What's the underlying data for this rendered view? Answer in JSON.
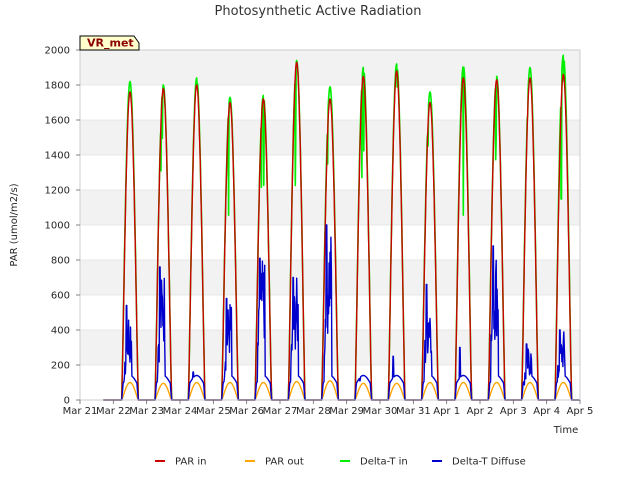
{
  "chart_data": {
    "type": "line",
    "title": "Photosynthetic Active Radiation",
    "xlabel": "Time",
    "ylabel": "PAR (umol/m2/s)",
    "ylim": [
      0,
      2000
    ],
    "xlim": [
      0,
      15
    ],
    "station_tag": "VR_met",
    "yticks": [
      0,
      200,
      400,
      600,
      800,
      1000,
      1200,
      1400,
      1600,
      1800,
      2000
    ],
    "x_tick_labels": [
      "Mar 21",
      "Mar 22",
      "Mar 23",
      "Mar 24",
      "Mar 25",
      "Mar 26",
      "Mar 27",
      "Mar 28",
      "Mar 29",
      "Mar 30",
      "Mar 31",
      "Apr 1",
      "Apr 2",
      "Apr 3",
      "Apr 4",
      "Apr 5"
    ],
    "band_color": "#f2f2f2",
    "legend_position": "bottom-center",
    "days": [
      {
        "date": "Mar 22",
        "par_in": 1760,
        "par_out": 100,
        "delta_t_in": 1820,
        "delta_t_diffuse": 540
      },
      {
        "date": "Mar 23",
        "par_in": 1780,
        "par_out": 95,
        "delta_t_in": 1800,
        "delta_t_diffuse": 760
      },
      {
        "date": "Mar 24",
        "par_in": 1800,
        "par_out": 100,
        "delta_t_in": 1840,
        "delta_t_diffuse": 160
      },
      {
        "date": "Mar 25",
        "par_in": 1700,
        "par_out": 100,
        "delta_t_in": 1730,
        "delta_t_diffuse": 580
      },
      {
        "date": "Mar 26",
        "par_in": 1720,
        "par_out": 100,
        "delta_t_in": 1740,
        "delta_t_diffuse": 810
      },
      {
        "date": "Mar 27",
        "par_in": 1930,
        "par_out": 105,
        "delta_t_in": 1940,
        "delta_t_diffuse": 700
      },
      {
        "date": "Mar 28",
        "par_in": 1720,
        "par_out": 110,
        "delta_t_in": 1790,
        "delta_t_diffuse": 1000
      },
      {
        "date": "Mar 29",
        "par_in": 1850,
        "par_out": 95,
        "delta_t_in": 1900,
        "delta_t_diffuse": 110
      },
      {
        "date": "Mar 30",
        "par_in": 1880,
        "par_out": 95,
        "delta_t_in": 1920,
        "delta_t_diffuse": 250
      },
      {
        "date": "Mar 31",
        "par_in": 1700,
        "par_out": 100,
        "delta_t_in": 1760,
        "delta_t_diffuse": 660
      },
      {
        "date": "Apr 1",
        "par_in": 1840,
        "par_out": 100,
        "delta_t_in": 1910,
        "delta_t_diffuse": 300
      },
      {
        "date": "Apr 2",
        "par_in": 1830,
        "par_out": 100,
        "delta_t_in": 1850,
        "delta_t_diffuse": 880
      },
      {
        "date": "Apr 3",
        "par_in": 1840,
        "par_out": 100,
        "delta_t_in": 1900,
        "delta_t_diffuse": 320
      },
      {
        "date": "Apr 4",
        "par_in": 1860,
        "par_out": 100,
        "delta_t_in": 1970,
        "delta_t_diffuse": 400
      }
    ],
    "series": [
      {
        "name": "PAR in",
        "key": "par_in",
        "color": "#cc0000"
      },
      {
        "name": "PAR out",
        "key": "par_out",
        "color": "#ffa500"
      },
      {
        "name": "Delta-T in",
        "key": "delta_t_in",
        "color": "#00ee00"
      },
      {
        "name": "Delta-T Diffuse",
        "key": "delta_t_diffuse",
        "color": "#0000cc"
      }
    ]
  }
}
